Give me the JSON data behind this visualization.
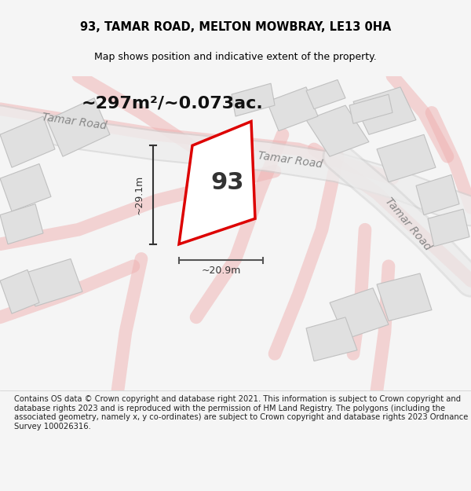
{
  "title": "93, TAMAR ROAD, MELTON MOWBRAY, LE13 0HA",
  "subtitle": "Map shows position and indicative extent of the property.",
  "area_label": "~297m²/~0.073ac.",
  "property_number": "93",
  "dim_height": "~29.1m",
  "dim_width": "~20.9m",
  "footer": "Contains OS data © Crown copyright and database right 2021. This information is subject to Crown copyright and database rights 2023 and is reproduced with the permission of HM Land Registry. The polygons (including the associated geometry, namely x, y co-ordinates) are subject to Crown copyright and database rights 2023 Ordnance Survey 100026316.",
  "bg_color": "#f5f5f5",
  "map_bg": "#ffffff",
  "road_color_light": "#f0b0b0",
  "road_color_gray": "#d0d0d0",
  "building_fill": "#e0e0e0",
  "building_stroke": "#c0c0c0",
  "property_fill": "#ffffff",
  "property_stroke": "#dd0000",
  "dim_color": "#333333",
  "road_label_color": "#888888",
  "title_color": "#000000",
  "footer_color": "#222222"
}
